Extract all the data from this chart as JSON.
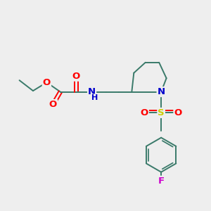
{
  "bg_color": "#eeeeee",
  "bond_color": "#3a7a6a",
  "line_width": 1.4,
  "atom_colors": {
    "O": "#ff0000",
    "N": "#0000cc",
    "S": "#cccc00",
    "F": "#cc00cc",
    "C": "#3a7a6a"
  },
  "figsize": [
    3.0,
    3.0
  ],
  "dpi": 100,
  "xlim": [
    0,
    10
  ],
  "ylim": [
    0,
    10
  ],
  "font_size": 9.5
}
